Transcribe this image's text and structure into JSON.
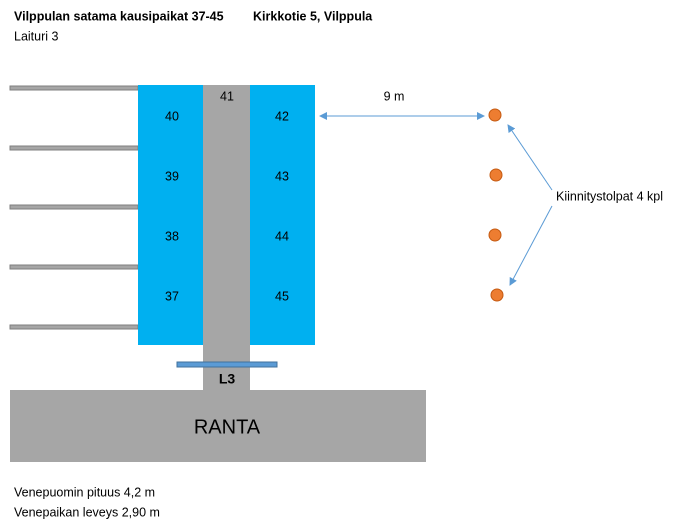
{
  "header": {
    "title": "Vilppulan satama kausipaikat 37-45",
    "address": "Kirkkotie 5, Vilppula",
    "subtitle": "Laituri 3"
  },
  "slots": {
    "left": [
      "40",
      "39",
      "38",
      "37"
    ],
    "end": "41",
    "right": [
      "42",
      "43",
      "44",
      "45"
    ]
  },
  "pier": {
    "label": "L3"
  },
  "shore": {
    "label": "RANTA"
  },
  "distance": {
    "label": "9 m"
  },
  "posts": {
    "label": "Kiinnitystolpat 4 kpl"
  },
  "footer": [
    "Venepuomin pituus 4,2 m",
    "Venepaikan leveys 2,90 m"
  ]
}
